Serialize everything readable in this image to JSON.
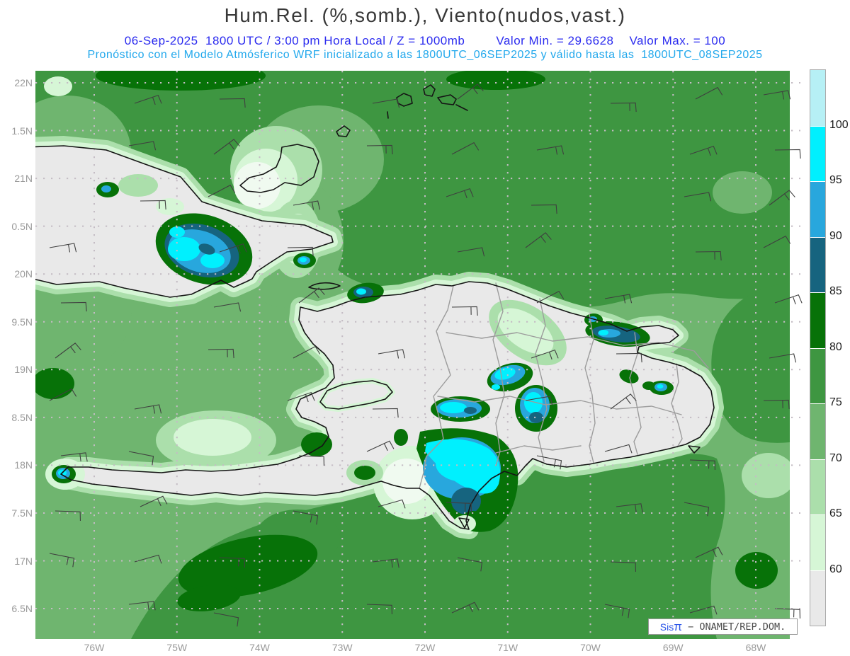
{
  "header": {
    "title": "Hum.Rel. (%,somb.), Viento(nudos,vast.)",
    "line1_left": "06-Sep-2025  1800 UTC / 3:00 pm Hora Local / Z = 1000mb",
    "line1_min": "Valor Min. = 29.6628",
    "line1_max": "Valor Max. = 100",
    "line2": "Pronóstico con el Modelo Atmósferico WRF inicializado a las 1800UTC_06SEP2025 y válido hasta las  1800UTC_08SEP2025"
  },
  "axes": {
    "lat_labels": [
      "22N",
      "1.5N",
      "21N",
      "0.5N",
      "20N",
      "9.5N",
      "19N",
      "8.5N",
      "18N",
      "7.5N",
      "17N",
      "6.5N"
    ],
    "lon_labels": [
      "76W",
      "75W",
      "74W",
      "73W",
      "72W",
      "71W",
      "70W",
      "69W",
      "68W"
    ]
  },
  "legend": {
    "unit": "%",
    "tick_values": [
      "100",
      "95",
      "90",
      "85",
      "80",
      "75",
      "70",
      "65",
      "60"
    ],
    "segment_colors_top_to_bottom": [
      "#B6F0F5",
      "#00F0FE",
      "#28A7DD",
      "#16647F",
      "#077208",
      "#3E9641",
      "#6FB56F",
      "#ABDFAB",
      "#D6F6D6",
      "#E9E9E9"
    ]
  },
  "palette": {
    "gray": "#E9E9E9",
    "g60": "#D6F6D6",
    "g60w": "#F0FAF0",
    "g65": "#ABDFAB",
    "g70": "#6FB56F",
    "g75": "#3E9641",
    "g80": "#077208",
    "b85": "#16647F",
    "b90": "#28A7DD",
    "c95": "#00F0FE",
    "coast": "#151515",
    "border": "#9c9c9c",
    "grid": "#C4BCC4",
    "barb": "#3f3f3f"
  },
  "watermark": {
    "brand": "Sis",
    "pi": "π",
    "rest": " − ONAMET/REP.DOM."
  },
  "chart_data": {
    "type": "heatmap",
    "title": "Hum.Rel. (%,somb.), Viento(nudos,vast.)",
    "field": "Relative humidity (%) shaded, wind (knots) barbs",
    "level": "1000mb",
    "valid_time": "06-Sep-2025 1800 UTC / 3:00 pm Hora Local",
    "value_min": 29.6628,
    "value_max": 100,
    "colorbar_levels": [
      60,
      65,
      70,
      75,
      80,
      85,
      90,
      95,
      100
    ],
    "lat_range_labels": [
      "6.5N (16.5N)",
      "22N"
    ],
    "lon_range_labels": [
      "76W",
      "68W"
    ],
    "legend_position": "right"
  }
}
